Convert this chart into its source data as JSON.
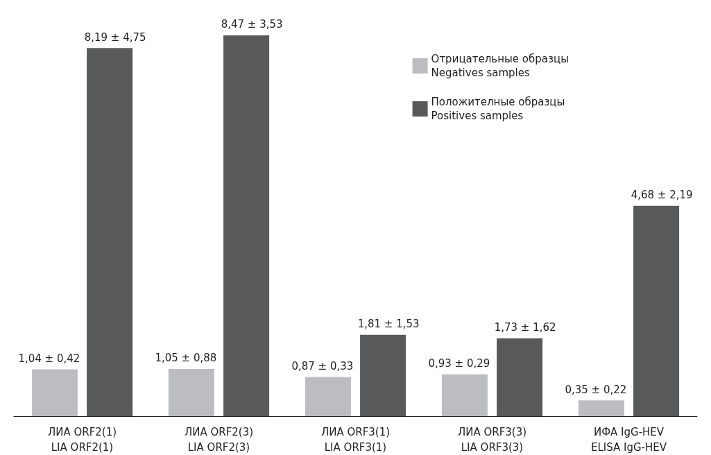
{
  "chart_data": {
    "type": "bar",
    "categories": [
      "ЛИА ORF2(1)\nLIA ORF2(1)",
      "ЛИА ORF2(3)\nLIA ORF2(3)",
      "ЛИА ORF3(1)\nLIA ORF3(1)",
      "ЛИА ORF3(3)\nLIA ORF3(3)",
      "ИФА IgG-HEV\nELISA IgG-HEV"
    ],
    "series": [
      {
        "name": "Отрицательные образцы\nNegatives samples",
        "color": "#bcbdc0",
        "values": [
          1.04,
          1.05,
          0.87,
          0.93,
          0.35
        ],
        "value_labels": [
          "1,04 ± 0,42",
          "1,05 ± 0,88",
          "0,87 ± 0,33",
          "0,93 ± 0,29",
          "0,35 ± 0,22"
        ]
      },
      {
        "name": "Положителные образцы\nPositives samples",
        "color": "#58595b",
        "values": [
          8.19,
          8.47,
          1.81,
          1.73,
          4.68
        ],
        "value_labels": [
          "8,19 ± 4,75",
          "8,47 ± 3,53",
          "1,81 ± 1,53",
          "1,73 ± 1,62",
          "4,68 ± 2,19"
        ]
      }
    ],
    "legend": "top right"
  }
}
